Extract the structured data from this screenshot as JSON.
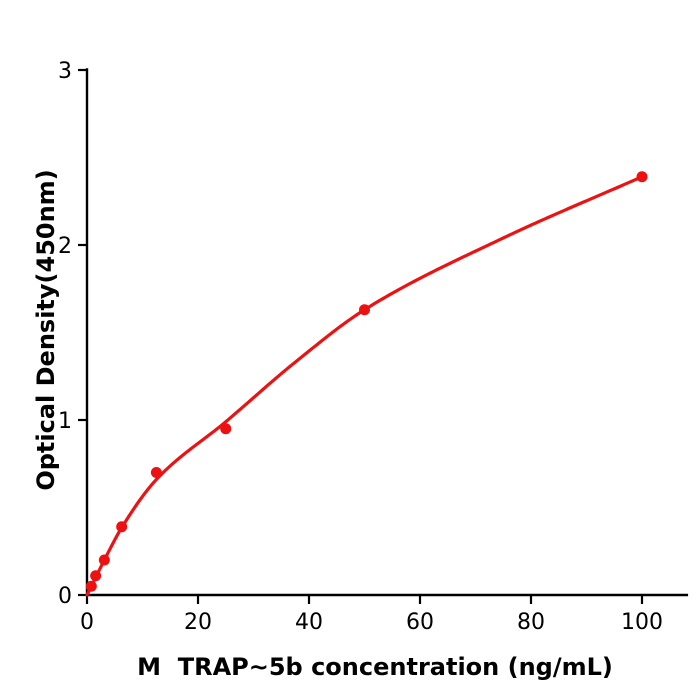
{
  "figure": {
    "background": "#ffffff",
    "axis_color": "#000000"
  },
  "chart_data": {
    "type": "scatter",
    "subtype": "scatter-with-fitted-line",
    "title": "",
    "xlabel": "M  TRAP~5b concentration (ng/mL)",
    "ylabel": "Optical Density(450nm)",
    "x": [
      0.78,
      1.56,
      3.125,
      6.25,
      12.5,
      25,
      50,
      100
    ],
    "y": [
      0.05,
      0.11,
      0.2,
      0.39,
      0.7,
      0.95,
      1.63,
      2.39
    ],
    "fit_curve": {
      "x": [
        0,
        0.78,
        1.56,
        3.125,
        6.25,
        12.5,
        25,
        37.5,
        50,
        75,
        100
      ],
      "y": [
        0,
        0.05,
        0.1,
        0.2,
        0.385,
        0.66,
        0.99,
        1.33,
        1.63,
        2.04,
        2.39
      ]
    },
    "xticks": [
      "0",
      "20",
      "40",
      "60",
      "80",
      "100"
    ],
    "xtick_values": [
      0,
      20,
      40,
      60,
      80,
      100
    ],
    "yticks": [
      "0",
      "1",
      "2",
      "3"
    ],
    "ytick_values": [
      0,
      1,
      2,
      3
    ],
    "xlim": [
      0,
      108.3
    ],
    "ylim": [
      0,
      3.01
    ],
    "grid": false,
    "legend": null,
    "marker_color": "#ee1111",
    "line_color": "#ee1111"
  }
}
